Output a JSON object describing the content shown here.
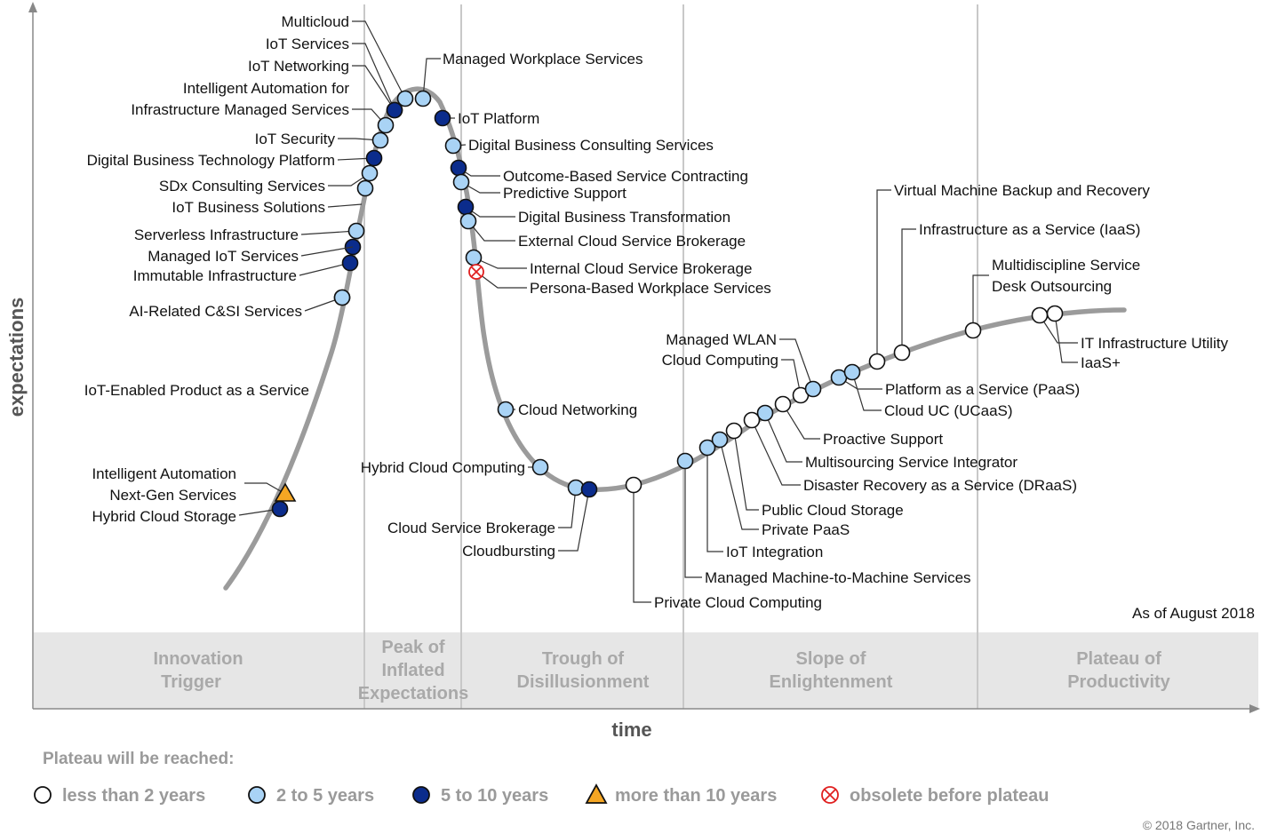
{
  "axes": {
    "y_label": "expectations",
    "x_label": "time"
  },
  "as_of": "As of August 2018",
  "copyright": "© 2018 Gartner, Inc.",
  "phases": [
    {
      "lines": [
        "Innovation",
        "Trigger"
      ]
    },
    {
      "lines": [
        "Peak of",
        "Inflated",
        "Expectations"
      ]
    },
    {
      "lines": [
        "Trough of",
        "Disillusionment"
      ]
    },
    {
      "lines": [
        "Slope of",
        "Enlightenment"
      ]
    },
    {
      "lines": [
        "Plateau of",
        "Productivity"
      ]
    }
  ],
  "legend": {
    "title": "Plateau will be reached:",
    "items": [
      {
        "key": "lt2",
        "label": "less than 2 years"
      },
      {
        "key": "2to5",
        "label": "2 to 5 years"
      },
      {
        "key": "5to10",
        "label": "5 to 10 years"
      },
      {
        "key": "gt10",
        "label": "more than 10 years"
      },
      {
        "key": "obsolete",
        "label": "obsolete before plateau"
      }
    ]
  },
  "marker_colors": {
    "lt2": "#ffffff",
    "2to5": "#a9d3f5",
    "5to10": "#0b2c8c",
    "gt10": "#f5a623",
    "obsolete": "#e02020"
  },
  "technologies": [
    {
      "name": "Multicloud",
      "category": "2to5"
    },
    {
      "name": "IoT Services",
      "category": "2to5"
    },
    {
      "name": "IoT Networking",
      "category": "5to10"
    },
    {
      "name": "Intelligent Automation for\nInfrastructure Managed Services",
      "category": "2to5"
    },
    {
      "name": "IoT Security",
      "category": "2to5"
    },
    {
      "name": "Digital Business Technology Platform",
      "category": "5to10"
    },
    {
      "name": "SDx Consulting Services",
      "category": "2to5"
    },
    {
      "name": "IoT Business Solutions",
      "category": "2to5"
    },
    {
      "name": "Serverless Infrastructure",
      "category": "5to10"
    },
    {
      "name": "Managed IoT Services",
      "category": "2to5"
    },
    {
      "name": "Immutable Infrastructure",
      "category": "5to10"
    },
    {
      "name": "AI-Related C&SI Services",
      "category": "5to10"
    },
    {
      "name": "IoT-Enabled Product as a Service",
      "category": "2to5"
    },
    {
      "name": "Intelligent Automation",
      "category": "gt10"
    },
    {
      "name": "Next-Gen Services",
      "category": "gt10"
    },
    {
      "name": "Hybrid Cloud Storage",
      "category": "5to10"
    },
    {
      "name": "Managed Workplace Services",
      "category": "2to5"
    },
    {
      "name": "IoT Platform",
      "category": "5to10"
    },
    {
      "name": "Digital Business Consulting Services",
      "category": "2to5"
    },
    {
      "name": "Outcome-Based Service Contracting",
      "category": "5to10"
    },
    {
      "name": "Predictive Support",
      "category": "2to5"
    },
    {
      "name": "Digital Business Transformation",
      "category": "5to10"
    },
    {
      "name": "External Cloud Service Brokerage",
      "category": "2to5"
    },
    {
      "name": "Internal Cloud Service Brokerage",
      "category": "2to5"
    },
    {
      "name": "Persona-Based Workplace Services",
      "category": "obsolete"
    },
    {
      "name": "Cloud Networking",
      "category": "2to5"
    },
    {
      "name": "Hybrid Cloud Computing",
      "category": "2to5"
    },
    {
      "name": "Cloud Service Brokerage",
      "category": "2to5"
    },
    {
      "name": "Cloudbursting",
      "category": "5to10"
    },
    {
      "name": "Private Cloud Computing",
      "category": "lt2"
    },
    {
      "name": "Managed Machine-to-Machine Services",
      "category": "2to5"
    },
    {
      "name": "IoT Integration",
      "category": "2to5"
    },
    {
      "name": "Private PaaS",
      "category": "2to5"
    },
    {
      "name": "Public Cloud Storage",
      "category": "lt2"
    },
    {
      "name": "Disaster Recovery as a Service (DRaaS)",
      "category": "lt2"
    },
    {
      "name": "Multisourcing Service Integrator",
      "category": "2to5"
    },
    {
      "name": "Proactive Support",
      "category": "lt2"
    },
    {
      "name": "Cloud Computing",
      "category": "lt2"
    },
    {
      "name": "Managed WLAN",
      "category": "2to5"
    },
    {
      "name": "Platform as a Service (PaaS)",
      "category": "2to5"
    },
    {
      "name": "Cloud UC (UCaaS)",
      "category": "2to5"
    },
    {
      "name": "Virtual Machine Backup and Recovery",
      "category": "lt2"
    },
    {
      "name": "Infrastructure as a Service (IaaS)",
      "category": "lt2"
    },
    {
      "name": "Multidiscipline Service\nDesk Outsourcing",
      "category": "lt2"
    },
    {
      "name": "IT Infrastructure Utility",
      "category": "lt2"
    },
    {
      "name": "IaaS+",
      "category": "lt2"
    }
  ]
}
